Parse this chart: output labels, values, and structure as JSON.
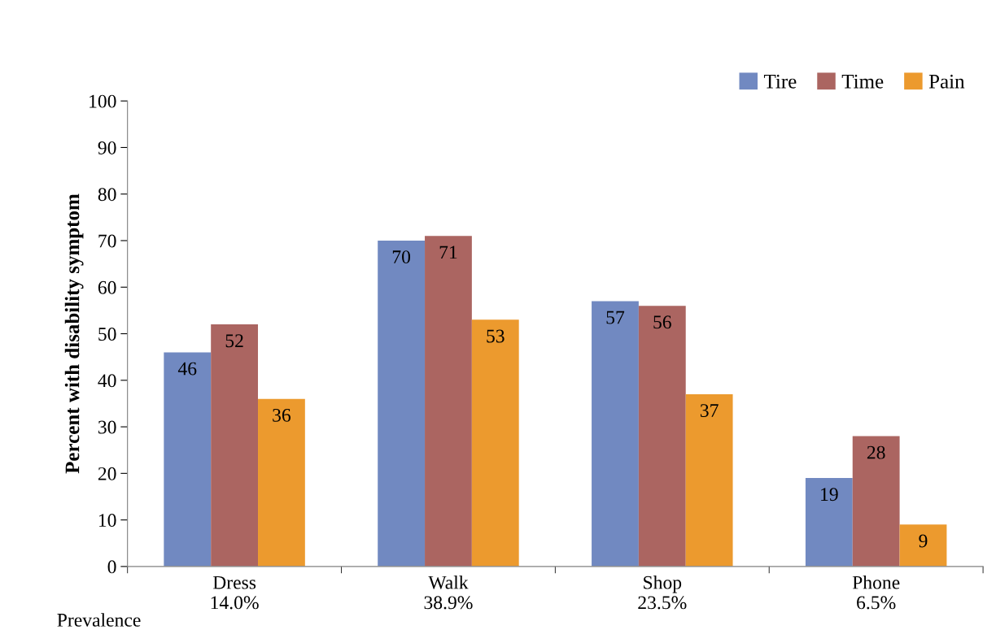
{
  "chart_data": {
    "type": "bar",
    "ylabel": "Percent with disability symptom",
    "categories": [
      "Dress\n14.0%",
      "Walk\n38.9%",
      "Shop\n23.5%",
      "Phone\n6.5%"
    ],
    "series": [
      {
        "name": "Tire",
        "color": "#7189c1",
        "values": [
          46,
          70,
          57,
          19
        ]
      },
      {
        "name": "Time",
        "color": "#ab6561",
        "values": [
          52,
          71,
          56,
          28
        ]
      },
      {
        "name": "Pain",
        "color": "#ec9a2e",
        "values": [
          36,
          53,
          37,
          9
        ]
      }
    ],
    "ylim": [
      0,
      100
    ],
    "yticks": [
      0,
      10,
      20,
      30,
      40,
      50,
      60,
      70,
      80,
      90,
      100
    ],
    "data_labels": true,
    "grid": false,
    "legend": "top right",
    "annotations": [
      "Prevalence"
    ]
  }
}
